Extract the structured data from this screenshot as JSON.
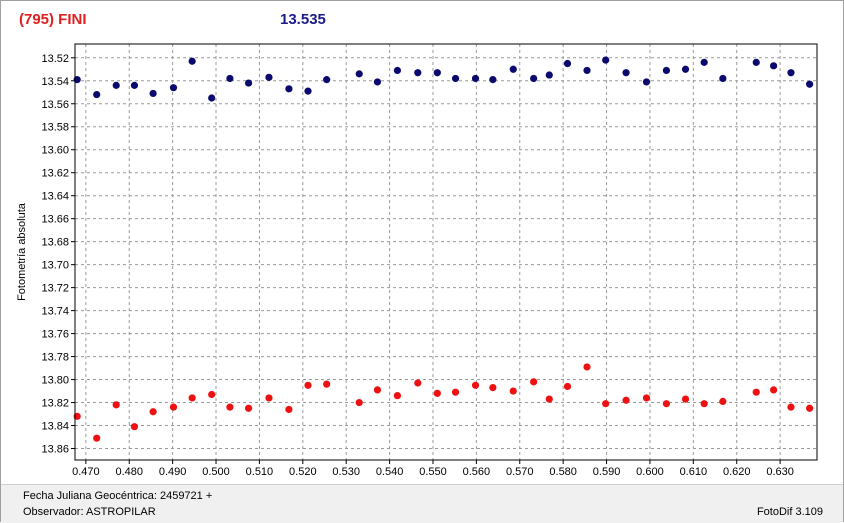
{
  "header": {
    "object_name": "(795) FINI",
    "magnitude": "13.535"
  },
  "footer": {
    "julian_date_label": "Fecha Juliana Geocéntrica: 2459721 +",
    "observer_label": "Observador: ASTROPILAR",
    "software_label": "FotoDif 3.109"
  },
  "colors": {
    "series_upper": "#0a0a6e",
    "series_lower": "#ee1111",
    "title_name": "#e02020",
    "title_mag": "#1a1a8c"
  },
  "chart_data": {
    "type": "scatter",
    "ylabel": "Fotometría absoluta",
    "xlabel": "",
    "xlim": [
      0.4675,
      0.6385
    ],
    "ylim": [
      13.87,
      13.508
    ],
    "y_inverted": true,
    "grid": true,
    "xticks": [
      0.47,
      0.48,
      0.49,
      0.5,
      0.51,
      0.52,
      0.53,
      0.54,
      0.55,
      0.56,
      0.57,
      0.58,
      0.59,
      0.6,
      0.61,
      0.62,
      0.63
    ],
    "xtick_labels": [
      "0.470",
      "0.480",
      "0.490",
      "0.500",
      "0.510",
      "0.520",
      "0.530",
      "0.540",
      "0.550",
      "0.560",
      "0.570",
      "0.580",
      "0.590",
      "0.600",
      "0.610",
      "0.620",
      "0.630"
    ],
    "yticks": [
      13.52,
      13.54,
      13.56,
      13.58,
      13.6,
      13.62,
      13.64,
      13.66,
      13.68,
      13.7,
      13.72,
      13.74,
      13.76,
      13.78,
      13.8,
      13.82,
      13.84,
      13.86
    ],
    "ytick_labels": [
      "13.52",
      "13.54",
      "13.56",
      "13.58",
      "13.60",
      "13.62",
      "13.64",
      "13.66",
      "13.68",
      "13.70",
      "13.72",
      "13.74",
      "13.76",
      "13.78",
      "13.80",
      "13.82",
      "13.84",
      "13.86"
    ],
    "series": [
      {
        "color": "#0a0a6e",
        "x": [
          0.468,
          0.4725,
          0.477,
          0.4812,
          0.4855,
          0.4902,
          0.4945,
          0.499,
          0.5032,
          0.5075,
          0.5122,
          0.5168,
          0.5212,
          0.5255,
          0.533,
          0.5372,
          0.5418,
          0.5465,
          0.551,
          0.5552,
          0.5598,
          0.5638,
          0.5685,
          0.5732,
          0.5768,
          0.581,
          0.5855,
          0.5898,
          0.5945,
          0.5992,
          0.6038,
          0.6082,
          0.6125,
          0.6168,
          0.6245,
          0.6285,
          0.6325,
          0.6368
        ],
        "y": [
          13.539,
          13.552,
          13.544,
          13.544,
          13.551,
          13.546,
          13.523,
          13.555,
          13.538,
          13.542,
          13.537,
          13.547,
          13.549,
          13.539,
          13.534,
          13.541,
          13.531,
          13.533,
          13.533,
          13.538,
          13.538,
          13.539,
          13.53,
          13.538,
          13.535,
          13.525,
          13.531,
          13.522,
          13.533,
          13.541,
          13.531,
          13.53,
          13.524,
          13.538,
          13.524,
          13.527,
          13.533,
          13.543
        ]
      },
      {
        "color": "#ee1111",
        "x": [
          0.468,
          0.4725,
          0.477,
          0.4812,
          0.4855,
          0.4902,
          0.4945,
          0.499,
          0.5032,
          0.5075,
          0.5122,
          0.5168,
          0.5212,
          0.5255,
          0.533,
          0.5372,
          0.5418,
          0.5465,
          0.551,
          0.5552,
          0.5598,
          0.5638,
          0.5685,
          0.5732,
          0.5768,
          0.581,
          0.5855,
          0.5898,
          0.5945,
          0.5992,
          0.6038,
          0.6082,
          0.6125,
          0.6168,
          0.6245,
          0.6285,
          0.6325,
          0.6368
        ],
        "y": [
          13.832,
          13.851,
          13.822,
          13.841,
          13.828,
          13.824,
          13.816,
          13.813,
          13.824,
          13.825,
          13.816,
          13.826,
          13.805,
          13.804,
          13.82,
          13.809,
          13.814,
          13.803,
          13.812,
          13.811,
          13.805,
          13.807,
          13.81,
          13.802,
          13.817,
          13.806,
          13.789,
          13.821,
          13.818,
          13.816,
          13.821,
          13.817,
          13.821,
          13.819,
          13.811,
          13.809,
          13.824,
          13.825
        ]
      }
    ]
  }
}
